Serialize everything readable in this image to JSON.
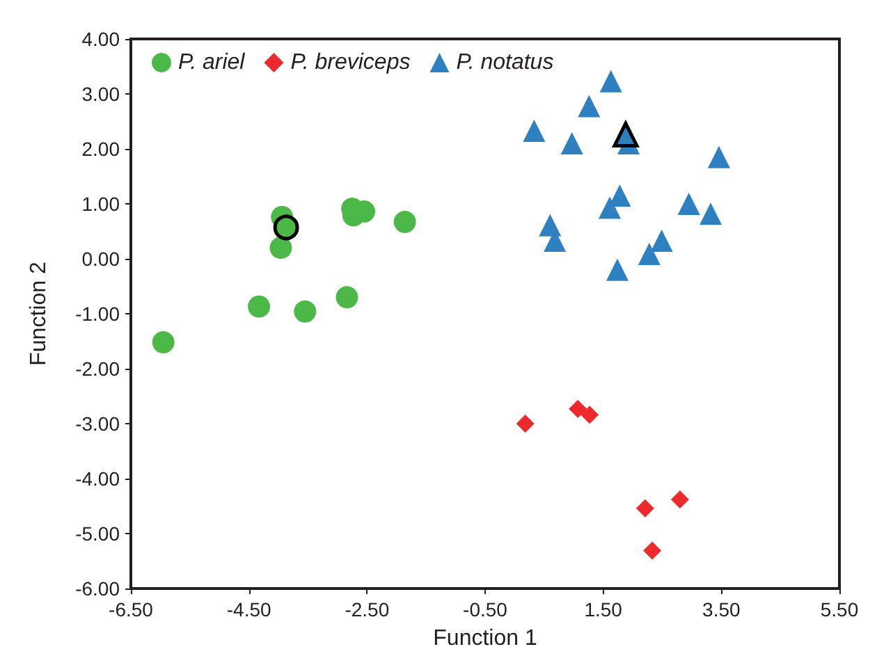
{
  "chart_data": {
    "type": "scatter",
    "xlabel": "Function 1",
    "ylabel": "Function 2",
    "xlim": [
      -6.5,
      5.5
    ],
    "xticks": [
      {
        "value": -6.5,
        "label": "-6.50"
      },
      {
        "value": -4.5,
        "label": "-4.50"
      },
      {
        "value": -2.5,
        "label": "-2.50"
      },
      {
        "value": -0.5,
        "label": "-0.50"
      },
      {
        "value": 1.5,
        "label": "1.50"
      },
      {
        "value": 3.5,
        "label": "3.50"
      },
      {
        "value": 5.5,
        "label": "5.50"
      }
    ],
    "ylim": [
      -6,
      4
    ],
    "yticks": [
      {
        "value": -6,
        "label": "-6.00"
      },
      {
        "value": -5,
        "label": "-5.00"
      },
      {
        "value": -4,
        "label": "-4.00"
      },
      {
        "value": -3,
        "label": "-3.00"
      },
      {
        "value": -2,
        "label": "-2.00"
      },
      {
        "value": -1,
        "label": "-1.00"
      },
      {
        "value": 0,
        "label": "0.00"
      },
      {
        "value": 1,
        "label": "1.00"
      },
      {
        "value": 2,
        "label": "2.00"
      },
      {
        "value": 3,
        "label": "3.00"
      },
      {
        "value": 4,
        "label": "4.00"
      }
    ],
    "grid": false,
    "legend": "top left",
    "series": [
      {
        "name": "P. ariel",
        "color": "#4cb848",
        "marker": "circle",
        "x": [
          -5.95,
          -4.33,
          -3.55,
          -2.84,
          -3.96,
          -3.94,
          -2.75,
          -2.73,
          -2.55,
          -1.86
        ],
        "values": [
          -1.52,
          -0.87,
          -0.96,
          -0.7,
          0.2,
          0.76,
          0.91,
          0.79,
          0.86,
          0.67
        ]
      },
      {
        "name": "P. breviceps",
        "color": "#ec2a2e",
        "marker": "diamond",
        "x": [
          0.18,
          1.07,
          1.27,
          2.8,
          2.21,
          2.33
        ],
        "values": [
          -3.0,
          -2.73,
          -2.84,
          -4.38,
          -4.54,
          -5.31
        ]
      },
      {
        "name": "P. notatus",
        "color": "#2f80c0",
        "marker": "triangle",
        "x": [
          1.63,
          1.26,
          0.33,
          0.97,
          1.93,
          3.46,
          1.78,
          1.61,
          2.95,
          3.32,
          0.6,
          0.68,
          2.49,
          2.28,
          1.74
        ],
        "values": [
          3.23,
          2.78,
          2.33,
          2.1,
          2.1,
          1.85,
          1.15,
          0.93,
          1.0,
          0.82,
          0.61,
          0.33,
          0.33,
          0.09,
          -0.2
        ]
      },
      {
        "color": "#4cb848",
        "marker": "circle",
        "x": [
          -3.87
        ],
        "values": [
          0.57
        ]
      },
      {
        "color": "#2f80c0",
        "marker": "triangle",
        "x": [
          1.88
        ],
        "values": [
          2.26
        ]
      }
    ]
  }
}
